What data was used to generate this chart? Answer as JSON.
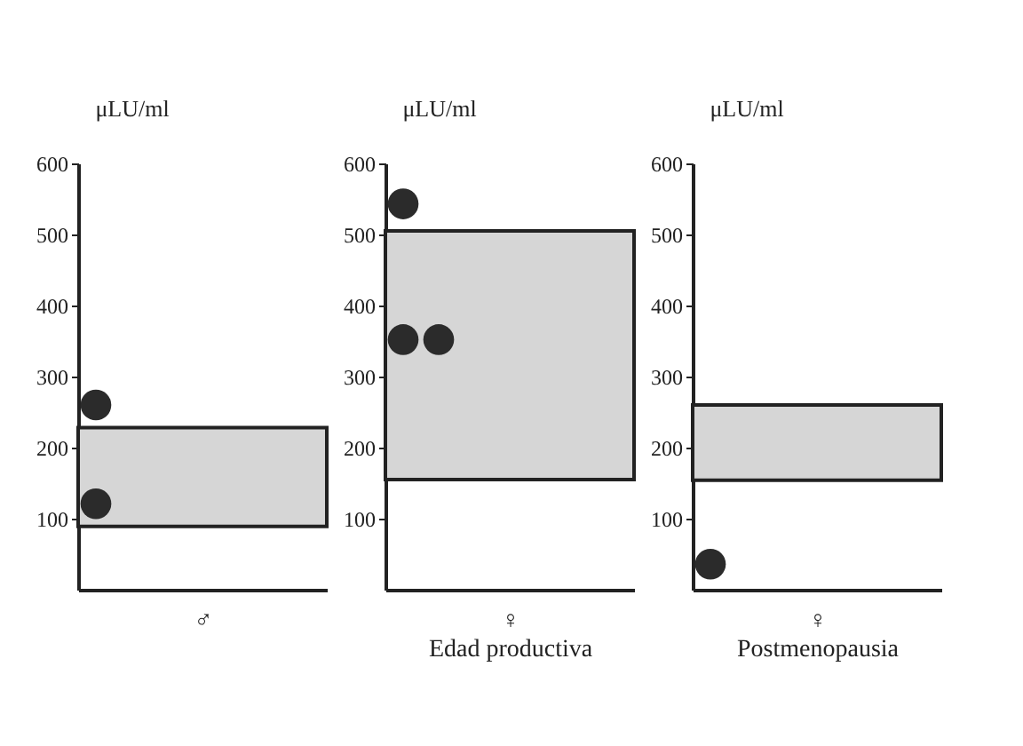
{
  "chart_data": [
    {
      "type": "scatter",
      "xlabel": "♂",
      "ylabel": "μLU/ml",
      "categories": [
        null,
        null,
        null,
        null,
        null,
        null,
        null
      ],
      "ylim": [
        0,
        600
      ],
      "yticks": [
        100,
        200,
        300,
        400,
        500,
        600
      ],
      "grid": false,
      "marker": "circle",
      "tick_labels": "y",
      "bands": [
        {
          "axis": "y",
          "from": 89,
          "to": 228,
          "color": "#d6d6d6"
        }
      ],
      "series": [
        {
          "color": "#2b2b2b",
          "values": [
            260,
            null,
            null,
            null,
            null,
            null,
            null
          ]
        },
        {
          "color": "#2b2b2b",
          "values": [
            121,
            null,
            null,
            null,
            null,
            null,
            null
          ]
        }
      ]
    },
    {
      "type": "scatter",
      "xlabel": "♀\nEdad productiva",
      "ylabel": "μLU/ml",
      "categories": [
        null,
        null,
        null,
        null,
        null,
        null,
        null
      ],
      "ylim": [
        0,
        600
      ],
      "yticks": [
        100,
        200,
        300,
        400,
        500,
        600
      ],
      "grid": false,
      "marker": "circle",
      "tick_labels": "y",
      "bands": [
        {
          "axis": "y",
          "from": 155,
          "to": 505,
          "color": "#d6d6d6"
        }
      ],
      "series": [
        {
          "color": "#2b2b2b",
          "values": [
            543,
            null,
            null,
            null,
            null,
            null,
            null
          ]
        },
        {
          "color": "#2b2b2b",
          "values": [
            352,
            352,
            null,
            null,
            null,
            null,
            null
          ]
        }
      ]
    },
    {
      "type": "scatter",
      "xlabel": "♀\nPostmenopausia",
      "ylabel": "μLU/ml",
      "categories": [
        null,
        null,
        null,
        null,
        null,
        null,
        null
      ],
      "ylim": [
        0,
        600
      ],
      "yticks": [
        100,
        200,
        300,
        400,
        500,
        600
      ],
      "grid": false,
      "marker": "circle",
      "tick_labels": "y",
      "bands": [
        {
          "axis": "y",
          "from": 154,
          "to": 260,
          "color": "#d6d6d6"
        }
      ],
      "series": [
        {
          "color": "#2b2b2b",
          "values": [
            36,
            null,
            null,
            null,
            null,
            null,
            null
          ]
        }
      ]
    }
  ]
}
